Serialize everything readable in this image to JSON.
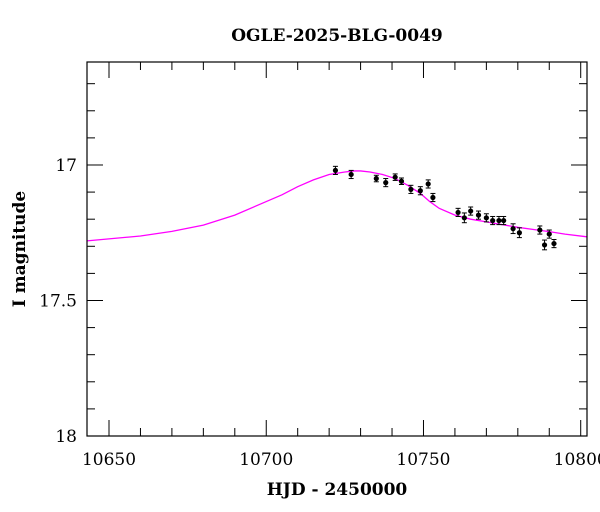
{
  "chart_data": {
    "type": "scatter",
    "title": "OGLE-2025-BLG-0049",
    "xlabel": "HJD - 2450000",
    "ylabel": "I magnitude",
    "xlim": [
      10643,
      10802
    ],
    "ylim": [
      18,
      16.62
    ],
    "y_inverted": true,
    "x_major_ticks": [
      10650,
      10700,
      10750,
      10800
    ],
    "x_minor_step": 10,
    "y_major_ticks": [
      17,
      17.5,
      18
    ],
    "y_minor_step": 0.1,
    "x_tick_labels": [
      "10650",
      "10700",
      "10750",
      "10800"
    ],
    "y_tick_labels": [
      "17",
      "17.5",
      "18"
    ],
    "grid": false,
    "colors": {
      "model": "#ff00ff",
      "points": "#000000",
      "axes": "#000000"
    },
    "series": [
      {
        "kind": "points",
        "points": [
          {
            "x": 10722.0,
            "y": 17.02,
            "err": 0.015
          },
          {
            "x": 10727.0,
            "y": 17.035,
            "err": 0.015
          },
          {
            "x": 10735.0,
            "y": 17.05,
            "err": 0.012
          },
          {
            "x": 10738.0,
            "y": 17.065,
            "err": 0.015
          },
          {
            "x": 10741.0,
            "y": 17.045,
            "err": 0.012
          },
          {
            "x": 10743.0,
            "y": 17.06,
            "err": 0.012
          },
          {
            "x": 10746.0,
            "y": 17.09,
            "err": 0.015
          },
          {
            "x": 10749.0,
            "y": 17.095,
            "err": 0.015
          },
          {
            "x": 10751.5,
            "y": 17.07,
            "err": 0.015
          },
          {
            "x": 10753.0,
            "y": 17.12,
            "err": 0.015
          },
          {
            "x": 10761.0,
            "y": 17.175,
            "err": 0.015
          },
          {
            "x": 10763.0,
            "y": 17.195,
            "err": 0.018
          },
          {
            "x": 10765.0,
            "y": 17.17,
            "err": 0.015
          },
          {
            "x": 10767.5,
            "y": 17.185,
            "err": 0.015
          },
          {
            "x": 10770.0,
            "y": 17.195,
            "err": 0.015
          },
          {
            "x": 10772.0,
            "y": 17.205,
            "err": 0.015
          },
          {
            "x": 10774.0,
            "y": 17.205,
            "err": 0.015
          },
          {
            "x": 10775.5,
            "y": 17.205,
            "err": 0.015
          },
          {
            "x": 10778.5,
            "y": 17.235,
            "err": 0.018
          },
          {
            "x": 10780.5,
            "y": 17.25,
            "err": 0.018
          },
          {
            "x": 10787.0,
            "y": 17.24,
            "err": 0.015
          },
          {
            "x": 10788.5,
            "y": 17.295,
            "err": 0.018
          },
          {
            "x": 10790.0,
            "y": 17.255,
            "err": 0.015
          },
          {
            "x": 10791.5,
            "y": 17.29,
            "err": 0.015
          }
        ]
      },
      {
        "kind": "model",
        "x": [
          10643,
          10660,
          10670,
          10680,
          10690,
          10700,
          10705,
          10710,
          10715,
          10720,
          10725,
          10728,
          10730,
          10733,
          10737,
          10741,
          10745,
          10749,
          10752,
          10755,
          10760,
          10765,
          10770,
          10775,
          10780,
          10785,
          10790,
          10795,
          10802
        ],
        "y": [
          17.28,
          17.262,
          17.245,
          17.222,
          17.185,
          17.135,
          17.11,
          17.08,
          17.055,
          17.035,
          17.026,
          17.022,
          17.022,
          17.026,
          17.035,
          17.05,
          17.075,
          17.105,
          17.135,
          17.16,
          17.185,
          17.2,
          17.21,
          17.22,
          17.23,
          17.238,
          17.246,
          17.255,
          17.265
        ]
      }
    ]
  }
}
